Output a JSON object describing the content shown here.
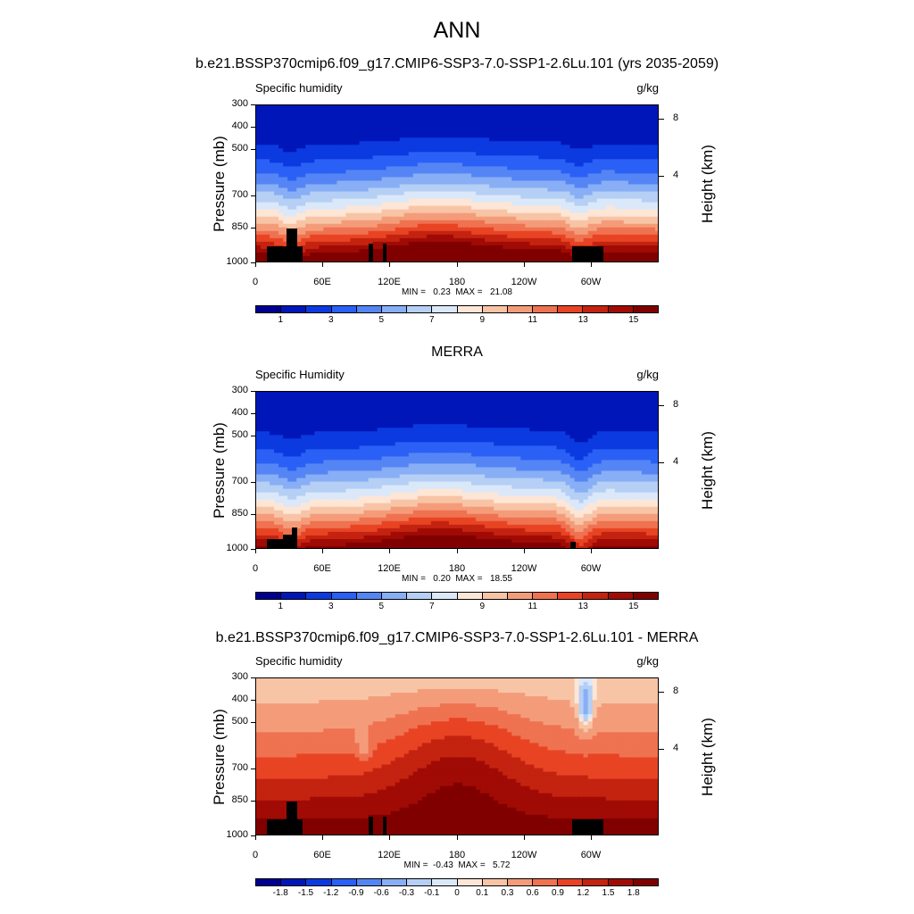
{
  "title": "ANN",
  "chart_data": [
    {
      "type": "heatmap",
      "panel_title": "b.e21.BSSP370cmip6.f09_g17.CMIP6-SSP3-7.0-SSP1-2.6Lu.101 (yrs 2035-2059)",
      "variable": "Specific humidity",
      "units": "g/kg",
      "ylabel": "Pressure (mb)",
      "ylabel_right": "Height (km)",
      "y_ticks": [
        "300",
        "400",
        "500",
        "700",
        "850",
        "1000"
      ],
      "y_ticks_right": [
        "8",
        "4"
      ],
      "x_ticks": [
        "0",
        "60E",
        "120E",
        "180",
        "120W",
        "60W"
      ],
      "stats": "MIN =   0.23  MAX =   21.08",
      "colorbar_labels": [
        "1",
        "3",
        "5",
        "7",
        "9",
        "11",
        "13",
        "15"
      ],
      "colorbar_colors": [
        "#000090",
        "#0016b8",
        "#0a3ae0",
        "#2a60f5",
        "#5585f5",
        "#88aef5",
        "#b5cff5",
        "#dbe8fa",
        "#fde6d6",
        "#f8c4a6",
        "#f49c7a",
        "#ef7251",
        "#e84424",
        "#c42310",
        "#a10b05",
        "#800000"
      ],
      "structure": "humid boundary layer, dry upper levels"
    },
    {
      "type": "heatmap",
      "panel_title": "MERRA",
      "variable": "Specific Humidity",
      "units": "g/kg",
      "ylabel": "Pressure (mb)",
      "ylabel_right": "Height (km)",
      "y_ticks": [
        "300",
        "400",
        "500",
        "700",
        "850",
        "1000"
      ],
      "y_ticks_right": [
        "8",
        "4"
      ],
      "x_ticks": [
        "0",
        "60E",
        "120E",
        "180",
        "120W",
        "60W"
      ],
      "stats": "MIN =   0.20  MAX =   18.55",
      "colorbar_labels": [
        "1",
        "3",
        "5",
        "7",
        "9",
        "11",
        "13",
        "15"
      ],
      "colorbar_colors": [
        "#000090",
        "#0016b8",
        "#0a3ae0",
        "#2a60f5",
        "#5585f5",
        "#88aef5",
        "#b5cff5",
        "#dbe8fa",
        "#fde6d6",
        "#f8c4a6",
        "#f49c7a",
        "#ef7251",
        "#e84424",
        "#c42310",
        "#a10b05",
        "#800000"
      ],
      "structure": "humid boundary layer, dry upper levels"
    },
    {
      "type": "heatmap",
      "panel_title": "b.e21.BSSP370cmip6.f09_g17.CMIP6-SSP3-7.0-SSP1-2.6Lu.101 - MERRA",
      "variable": "Specific humidity",
      "units": "g/kg",
      "ylabel": "Pressure (mb)",
      "ylabel_right": "Height (km)",
      "y_ticks": [
        "300",
        "400",
        "500",
        "700",
        "850",
        "1000"
      ],
      "y_ticks_right": [
        "8",
        "4"
      ],
      "x_ticks": [
        "0",
        "60E",
        "120E",
        "180",
        "120W",
        "60W"
      ],
      "stats": "MIN =  -0.43  MAX =   5.72",
      "colorbar_labels": [
        "-1.8",
        "-1.5",
        "-1.2",
        "-0.9",
        "-0.6",
        "-0.3",
        "-0.1",
        "0",
        "0.1",
        "0.3",
        "0.6",
        "0.9",
        "1.2",
        "1.5",
        "1.8"
      ],
      "colorbar_colors": [
        "#000090",
        "#0016b8",
        "#0a3ae0",
        "#2a60f5",
        "#5585f5",
        "#88aef5",
        "#b5cff5",
        "#dbe8fa",
        "#fde6d6",
        "#f8c4a6",
        "#f49c7a",
        "#ef7251",
        "#e84424",
        "#c42310",
        "#a10b05",
        "#800000"
      ],
      "structure": "positive differences, largest near surface"
    }
  ]
}
